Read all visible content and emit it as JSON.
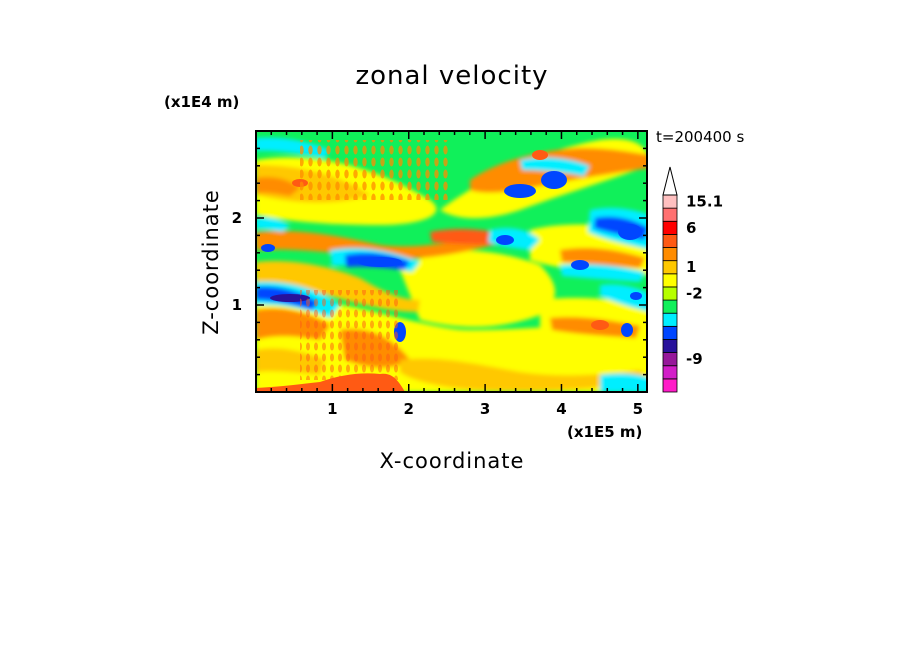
{
  "chart_data": {
    "type": "heatmap",
    "title": "zonal velocity",
    "xlabel": "X-coordinate",
    "ylabel": "Z-coordinate",
    "x_multiplier": "(x1E5 m)",
    "y_multiplier": "(x1E4 m)",
    "timestamp": "t=200400 s",
    "xlim": [
      0,
      5.12
    ],
    "ylim": [
      0,
      3.0
    ],
    "x_ticks": [
      {
        "value": 1,
        "label": "1"
      },
      {
        "value": 2,
        "label": "2"
      },
      {
        "value": 3,
        "label": "3"
      },
      {
        "value": 4,
        "label": "4"
      },
      {
        "value": 5,
        "label": "5"
      }
    ],
    "y_ticks": [
      {
        "value": 1,
        "label": "1"
      },
      {
        "value": 2,
        "label": "2"
      }
    ],
    "colorbar": {
      "levels": [
        {
          "color": "#ff1cc8"
        },
        {
          "color": "#d21ec8"
        },
        {
          "color": "#96189a"
        },
        {
          "color": "#28129b"
        },
        {
          "color": "#0046ff"
        },
        {
          "color": "#00eeff"
        },
        {
          "color": "#10f05a"
        },
        {
          "color": "#b6ff00"
        },
        {
          "color": "#ffff00"
        },
        {
          "color": "#ffc800"
        },
        {
          "color": "#ff8c00"
        },
        {
          "color": "#ff5a14"
        },
        {
          "color": "#ff0000"
        },
        {
          "color": "#ff7070"
        },
        {
          "color": "#ffc0c0"
        }
      ],
      "labels": [
        {
          "text": "15.1",
          "at_level": 14
        },
        {
          "text": "6",
          "at_level": 12
        },
        {
          "text": "1",
          "at_level": 9
        },
        {
          "text": "-2",
          "at_level": 7
        },
        {
          "text": "-9",
          "at_level": 2
        }
      ],
      "extend": "max"
    },
    "field": {
      "description_colors_by_value": "-9 magenta ... -2 blue, ~0 green/yellow, 1-6 orange, >6 red"
    }
  }
}
